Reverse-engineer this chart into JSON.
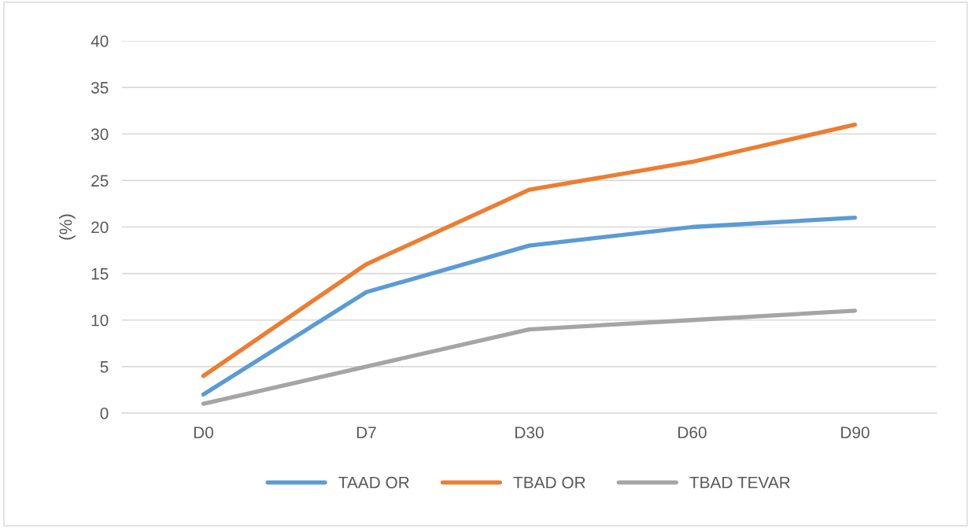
{
  "chart_data": {
    "type": "line",
    "ylabel": "(%)",
    "categories": [
      "D0",
      "D7",
      "D30",
      "D60",
      "D90"
    ],
    "series": [
      {
        "name": "TAAD OR",
        "color": "#5b9bd5",
        "values": [
          2,
          13,
          18,
          20,
          21
        ]
      },
      {
        "name": "TBAD OR",
        "color": "#ed7d31",
        "values": [
          4,
          16,
          24,
          27,
          31
        ]
      },
      {
        "name": "TBAD TEVAR",
        "color": "#a5a5a5",
        "values": [
          1,
          5,
          9,
          10,
          11
        ]
      }
    ],
    "ylim": [
      0,
      40
    ],
    "yticks": [
      0,
      5,
      10,
      15,
      20,
      25,
      30,
      35,
      40
    ],
    "grid": "y",
    "legend": "bottom",
    "marker": "none",
    "line_style": "solid"
  }
}
